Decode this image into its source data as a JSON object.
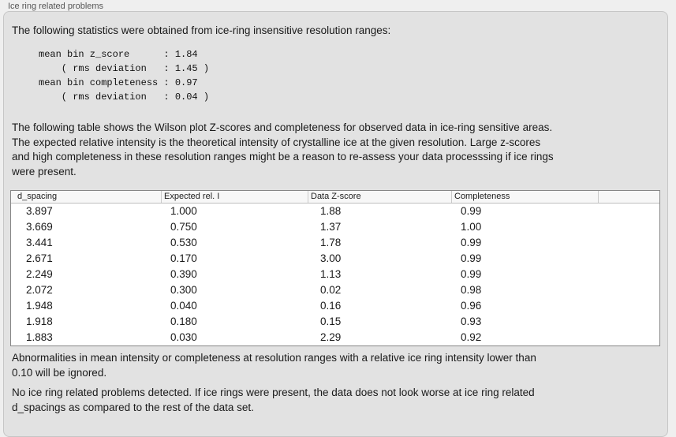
{
  "panel": {
    "title": "Ice ring related problems",
    "intro": "The following statistics were obtained from ice-ring insensitive resolution ranges:",
    "stats_block": "mean bin z_score      : 1.84\n    ( rms deviation   : 1.45 )\nmean bin completeness : 0.97\n    ( rms deviation   : 0.04 )",
    "table_description": "The following table shows the Wilson plot Z-scores and completeness for observed data in ice-ring sensitive areas.\nThe expected relative intensity is the theoretical intensity of crystalline ice at the given resolution. Large z-scores\nand high completeness in these resolution ranges might be a reason to re-assess your data processsing if ice rings\nwere present.",
    "note_ignore": "Abnormalities in mean intensity or completeness at resolution ranges with a relative ice ring intensity lower than\n0.10 will be ignored.",
    "conclusion": "No ice ring related problems detected. If ice rings were present, the data does not look worse at ice ring related\nd_spacings as compared to the rest of the data set."
  },
  "stats": {
    "mean_bin_z_score": 1.84,
    "z_score_rms_deviation": 1.45,
    "mean_bin_completeness": 0.97,
    "completeness_rms_deviation": 0.04
  },
  "table": {
    "columns": [
      "d_spacing",
      "Expected rel. I",
      "Data Z-score",
      "Completeness"
    ],
    "rows": [
      [
        "3.897",
        "1.000",
        "1.88",
        "0.99"
      ],
      [
        "3.669",
        "0.750",
        "1.37",
        "1.00"
      ],
      [
        "3.441",
        "0.530",
        "1.78",
        "0.99"
      ],
      [
        "2.671",
        "0.170",
        "3.00",
        "0.99"
      ],
      [
        "2.249",
        "0.390",
        "1.13",
        "0.99"
      ],
      [
        "2.072",
        "0.300",
        "0.02",
        "0.98"
      ],
      [
        "1.948",
        "0.040",
        "0.16",
        "0.96"
      ],
      [
        "1.918",
        "0.180",
        "0.15",
        "0.93"
      ],
      [
        "1.883",
        "0.030",
        "2.29",
        "0.92"
      ]
    ]
  },
  "colors": {
    "page_bg": "#efefef",
    "panel_bg": "#e2e2e2",
    "table_bg": "#ffffff",
    "table_border": "#868686",
    "header_bg": "#f7f7f7"
  }
}
